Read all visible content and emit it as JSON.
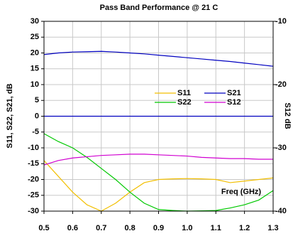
{
  "chart_data": {
    "type": "line",
    "title": "Pass Band Performance @ 21 C",
    "y_label": "S11, S22, S21, dB",
    "y2_label": "S12 dB",
    "annotation": "Freq (GHz)",
    "x": [
      0.5,
      0.55,
      0.6,
      0.65,
      0.7,
      0.75,
      0.8,
      0.85,
      0.9,
      0.95,
      1.0,
      1.05,
      1.1,
      1.15,
      1.2,
      1.25,
      1.3
    ],
    "series": [
      {
        "name": "S11",
        "color": "#f2bf00",
        "values": [
          -14,
          -19,
          -24,
          -28,
          -30,
          -27.5,
          -24,
          -21,
          -20,
          -19.8,
          -19.7,
          -19.8,
          -20,
          -21,
          -20.5,
          -20,
          -19.5
        ]
      },
      {
        "name": "S21",
        "color": "#0000c0",
        "values": [
          19.5,
          20,
          20.3,
          20.4,
          20.5,
          20.3,
          20,
          19.7,
          19.3,
          18.9,
          18.5,
          18.1,
          17.7,
          17.3,
          16.8,
          16.3,
          15.8
        ]
      },
      {
        "name": "S22",
        "color": "#00c800",
        "values": [
          -5.5,
          -8,
          -10,
          -13,
          -16.5,
          -20,
          -24,
          -27.5,
          -29.5,
          -29.8,
          -30,
          -29.9,
          -29.8,
          -29,
          -28,
          -26.5,
          -23.5
        ]
      },
      {
        "name": "S12",
        "color": "#d000d0",
        "axis": "y2",
        "values": [
          -32.7,
          -32,
          -31.6,
          -31.4,
          -31.2,
          -31.1,
          -31,
          -31,
          -31.1,
          -31.2,
          -31.3,
          -31.5,
          -31.6,
          -31.7,
          -31.7,
          -31.8,
          -31.8
        ]
      }
    ],
    "hline": {
      "value": 0,
      "color": "#0000c0"
    },
    "xlim": [
      0.5,
      1.3
    ],
    "xticks": [
      0.5,
      0.6,
      0.7,
      0.8,
      0.9,
      {
        "value": 1,
        "label": "1.0"
      },
      1.1,
      1.2,
      1.3
    ],
    "ylim": [
      -30,
      30
    ],
    "yticks": [
      30,
      25,
      20,
      15,
      10,
      5,
      0,
      -5,
      -10,
      -15,
      -20,
      -25,
      -30
    ],
    "y2lim": [
      -40,
      -10
    ],
    "y2ticks": [
      -10,
      -20,
      -30,
      -40
    ],
    "grid": true,
    "legend": "upper right"
  }
}
